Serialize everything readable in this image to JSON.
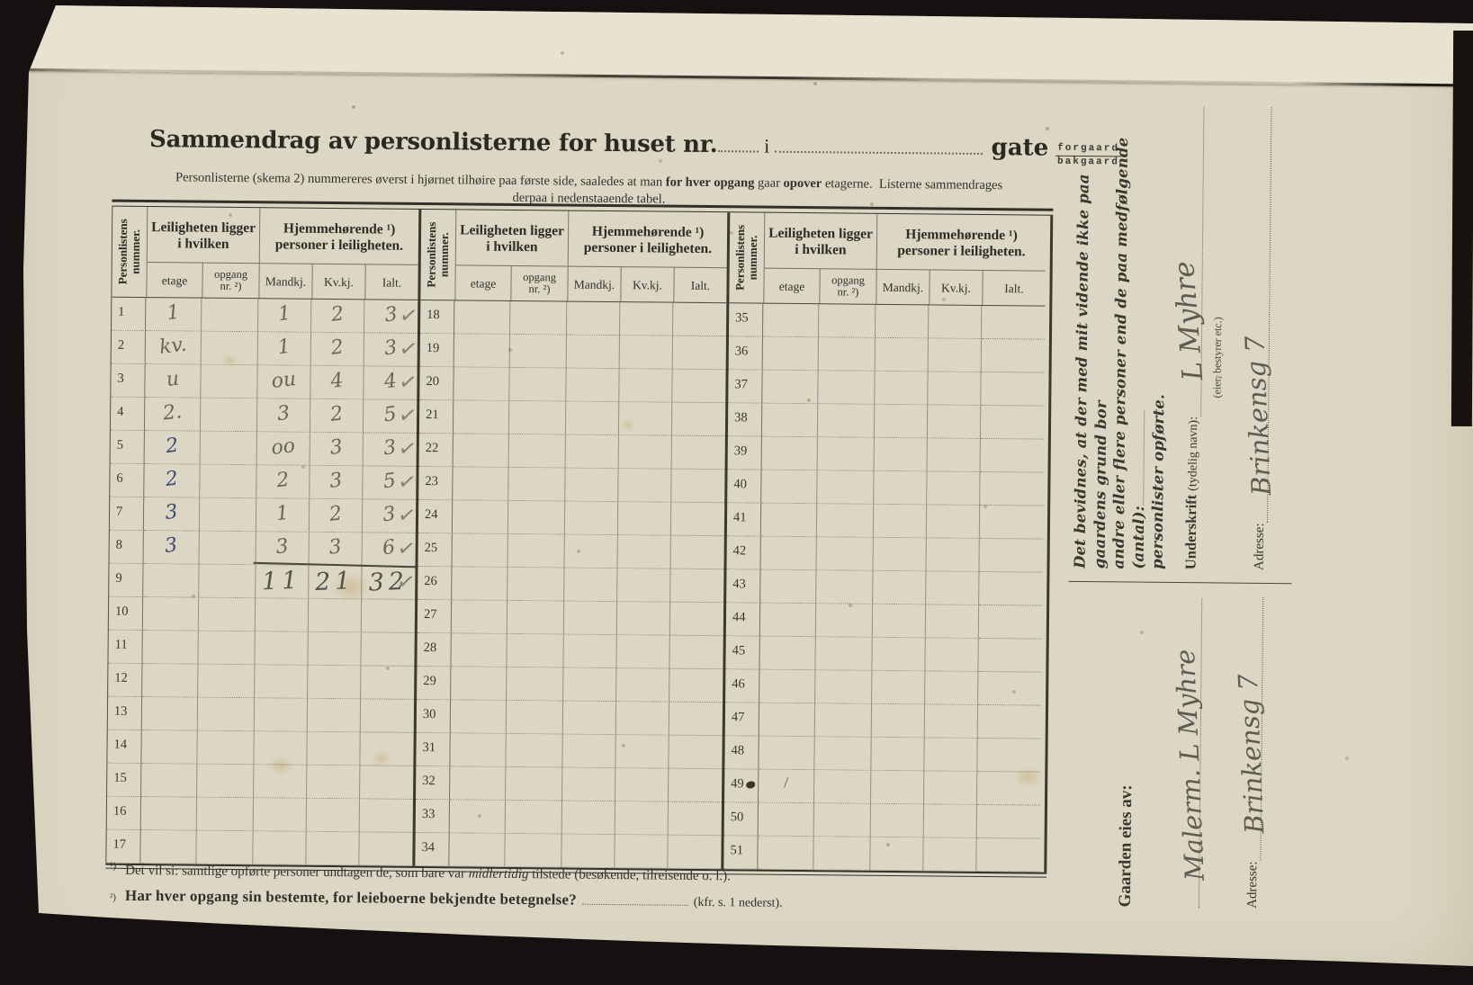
{
  "title": {
    "main": "Sammendrag av personlisterne for huset nr.",
    "infix": "i",
    "gate_label": "gate",
    "gate_top": "forgaard",
    "gate_bottom": "bakgaard"
  },
  "subtitle": {
    "p1": "Personlisterne (skema 2) nummereres øverst i hjørnet tilhøire paa første side, saaledes at man",
    "b1": "for hver opgang",
    "p2": "gaar",
    "b2": "opover",
    "p3": "etagerne.",
    "p4": "Listerne sammendrages",
    "line2": "derpaa i nedenstaaende tabel."
  },
  "table": {
    "headers": {
      "col_num": "Personlistens nummer.",
      "grp_left": "Leiligheten ligger i hvilken",
      "grp_right": "Hjemmehørende ¹) personer i leiligheten.",
      "etage": "etage",
      "opgang_1": "opgang",
      "opgang_2": "nr. ²)",
      "mandkj": "Mandkj.",
      "kvkj": "Kv.kj.",
      "ialt": "Ialt."
    },
    "groups": [
      {
        "rows": [
          {
            "num": "1",
            "etage": "1",
            "mandkj": "1",
            "kvkj": "2",
            "ialt": "3",
            "check": true
          },
          {
            "num": "2",
            "etage": "kv.",
            "mandkj": "1",
            "kvkj": "2",
            "ialt": "3",
            "check": true
          },
          {
            "num": "3",
            "etage": "u",
            "mandkj": "ou",
            "kvkj": "4",
            "ialt": "4",
            "check": true
          },
          {
            "num": "4",
            "etage": "2.",
            "mandkj": "3",
            "kvkj": "2",
            "ialt": "5",
            "check": true
          },
          {
            "num": "5",
            "etage": "2",
            "ink": "blue",
            "mandkj": "oo",
            "kvkj": "3",
            "ialt": "3",
            "check": true
          },
          {
            "num": "6",
            "etage": "2",
            "ink": "blue",
            "mandkj": "2",
            "kvkj": "3",
            "ialt": "5",
            "check": true
          },
          {
            "num": "7",
            "etage": "3",
            "ink": "blue",
            "mandkj": "1",
            "kvkj": "2",
            "ialt": "3",
            "check": true
          },
          {
            "num": "8",
            "etage": "3",
            "ink": "blue",
            "mandkj": "3",
            "kvkj": "3",
            "ialt": "6",
            "check": true,
            "sumline": true
          },
          {
            "num": "9",
            "mandkj": "11",
            "kvkj": "21",
            "ialt": "32",
            "check": true,
            "big": true
          },
          {
            "num": "10"
          },
          {
            "num": "11"
          },
          {
            "num": "12"
          },
          {
            "num": "13"
          },
          {
            "num": "14"
          },
          {
            "num": "15"
          },
          {
            "num": "16"
          },
          {
            "num": "17"
          }
        ]
      },
      {
        "rows": [
          {
            "num": "18"
          },
          {
            "num": "19"
          },
          {
            "num": "20"
          },
          {
            "num": "21"
          },
          {
            "num": "22"
          },
          {
            "num": "23"
          },
          {
            "num": "24"
          },
          {
            "num": "25"
          },
          {
            "num": "26"
          },
          {
            "num": "27"
          },
          {
            "num": "28"
          },
          {
            "num": "29"
          },
          {
            "num": "30"
          },
          {
            "num": "31"
          },
          {
            "num": "32"
          },
          {
            "num": "33"
          },
          {
            "num": "34"
          }
        ]
      },
      {
        "rows": [
          {
            "num": "35"
          },
          {
            "num": "36"
          },
          {
            "num": "37"
          },
          {
            "num": "38"
          },
          {
            "num": "39"
          },
          {
            "num": "40"
          },
          {
            "num": "41"
          },
          {
            "num": "42"
          },
          {
            "num": "43"
          },
          {
            "num": "44"
          },
          {
            "num": "45"
          },
          {
            "num": "46"
          },
          {
            "num": "47"
          },
          {
            "num": "48"
          },
          {
            "num": "49",
            "blot": true,
            "etage": "∕",
            "small": true
          },
          {
            "num": "50"
          },
          {
            "num": "51"
          }
        ]
      }
    ]
  },
  "sidebar": {
    "attest_1": "Det bevidnes, at der med mit vidende ikke paa gaardens grund bor",
    "attest_2": "andre eller flere personer end de paa medfølgende (antal):",
    "attest_3": "personlister opførte.",
    "underskrift_label": "Underskrift",
    "underskrift_paren": "(tydelig navn):",
    "underskrift_signature": "L Myhre",
    "underskrift_caption": "(eier, bestyrer etc.)",
    "adresse_label": "Adresse:",
    "adresse_value": "Brinkensg 7",
    "owner_label": "Gaarden eies av:",
    "owner_value": "Malerm. L Myhre",
    "owner_adresse_label": "Adresse:",
    "owner_adresse_value": "Brinkensg 7"
  },
  "footnotes": {
    "f1_marker": "¹)",
    "f1_a": "Det vil si: samtlige opførte personer undtagen de, som bare var",
    "f1_em": "midlertidig",
    "f1_b": "tilstede (besøkende, tilreisende o. l.).",
    "f2_marker": "²)",
    "f2_bold": "Har hver opgang sin bestemte, for leieboerne bekjendte betegnelse?",
    "f2_tail": "(kfr. s. 1 nederst)."
  }
}
